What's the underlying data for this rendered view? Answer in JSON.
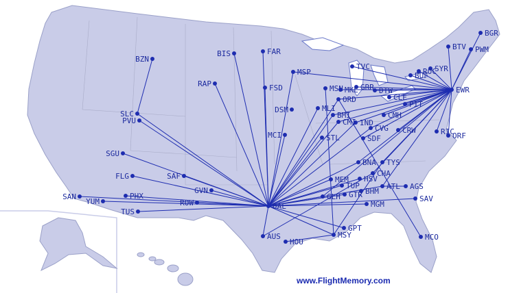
{
  "footer": {
    "site": "www.FlightMemory.com"
  },
  "colors": {
    "land": "#c9cce8",
    "route": "#1e2db0",
    "label": "#1c2a9e",
    "water": "#ffffff",
    "borders": "#a9acc8"
  },
  "airports": [
    "BGR",
    "PWM",
    "BTV",
    "SYR",
    "ROC",
    "BUF",
    "EWR",
    "TVC",
    "MSP",
    "GRR",
    "DTW",
    "MSN",
    "MKE",
    "ORD",
    "CLE",
    "PIT",
    "DSM",
    "MLI",
    "BMI",
    "CMI",
    "IND",
    "CMH",
    "CVG",
    "CRW",
    "SDF",
    "STL",
    "MCI",
    "RIC",
    "ORF",
    "BZN",
    "BIS",
    "FAR",
    "FSD",
    "RAP",
    "SLC",
    "PVU",
    "SGU",
    "FLG",
    "SAF",
    "GVN",
    "ROW",
    "PHX",
    "YUM",
    "SAN",
    "TUS",
    "DAL",
    "AUS",
    "HOU",
    "MSY",
    "GPT",
    "MGM",
    "SAV",
    "MCO",
    "ATL",
    "AGS",
    "BHM",
    "GTR",
    "GLH",
    "TUP",
    "HSV",
    "MEM",
    "CHA",
    "TYS",
    "BNA"
  ],
  "routes": [
    [
      "BZN",
      "SLC"
    ],
    [
      "DAL",
      "SLC"
    ],
    [
      "DAL",
      "PVU"
    ],
    [
      "DAL",
      "SGU"
    ],
    [
      "DAL",
      "FLG"
    ],
    [
      "DAL",
      "SAF"
    ],
    [
      "DAL",
      "GVN"
    ],
    [
      "DAL",
      "ROW"
    ],
    [
      "DAL",
      "PHX"
    ],
    [
      "DAL",
      "YUM"
    ],
    [
      "DAL",
      "SAN"
    ],
    [
      "DAL",
      "TUS"
    ],
    [
      "DAL",
      "RAP"
    ],
    [
      "DAL",
      "BIS"
    ],
    [
      "DAL",
      "FAR"
    ],
    [
      "DAL",
      "FSD"
    ],
    [
      "DAL",
      "MSP"
    ],
    [
      "DAL",
      "MLI"
    ],
    [
      "DAL",
      "ORD"
    ],
    [
      "DAL",
      "BMI"
    ],
    [
      "DAL",
      "CMI"
    ],
    [
      "DAL",
      "STL"
    ],
    [
      "DAL",
      "MCI"
    ],
    [
      "DAL",
      "BNA"
    ],
    [
      "DAL",
      "MEM"
    ],
    [
      "DAL",
      "TUP"
    ],
    [
      "DAL",
      "GLH"
    ],
    [
      "DAL",
      "GTR"
    ],
    [
      "DAL",
      "HSV"
    ],
    [
      "DAL",
      "MGM"
    ],
    [
      "DAL",
      "SAV"
    ],
    [
      "DAL",
      "ATL"
    ],
    [
      "DAL",
      "GPT"
    ],
    [
      "DAL",
      "MSY"
    ],
    [
      "DAL",
      "AUS"
    ],
    [
      "DAL",
      "CVG"
    ],
    [
      "DAL",
      "IND"
    ],
    [
      "HOU",
      "MSY"
    ],
    [
      "ORD",
      "MCO"
    ],
    [
      "MSN",
      "MSY"
    ],
    [
      "ATL",
      "AGS"
    ],
    [
      "AUS",
      "CHA"
    ],
    [
      "MSY",
      "TYS"
    ],
    [
      "EWR",
      "BGR"
    ],
    [
      "EWR",
      "PWM"
    ],
    [
      "EWR",
      "BTV"
    ],
    [
      "EWR",
      "SYR"
    ],
    [
      "EWR",
      "ROC"
    ],
    [
      "EWR",
      "BUF"
    ],
    [
      "EWR",
      "TVC"
    ],
    [
      "EWR",
      "MSP"
    ],
    [
      "EWR",
      "GRR"
    ],
    [
      "EWR",
      "DTW"
    ],
    [
      "EWR",
      "CLE"
    ],
    [
      "EWR",
      "PIT"
    ],
    [
      "EWR",
      "CMH"
    ],
    [
      "EWR",
      "CVG"
    ],
    [
      "EWR",
      "CRW"
    ],
    [
      "EWR",
      "ORF"
    ],
    [
      "EWR",
      "RIC"
    ],
    [
      "EWR",
      "IND"
    ],
    [
      "EWR",
      "CMI"
    ],
    [
      "EWR",
      "ORD"
    ],
    [
      "EWR",
      "MKE"
    ],
    [
      "EWR",
      "BNA"
    ],
    [
      "EWR",
      "TYS"
    ],
    [
      "EWR",
      "CHA"
    ],
    [
      "EWR",
      "ATL"
    ],
    [
      "EWR",
      "GLH"
    ],
    [
      "EWR",
      "SDF"
    ],
    [
      "EWR",
      "BMI"
    ]
  ]
}
